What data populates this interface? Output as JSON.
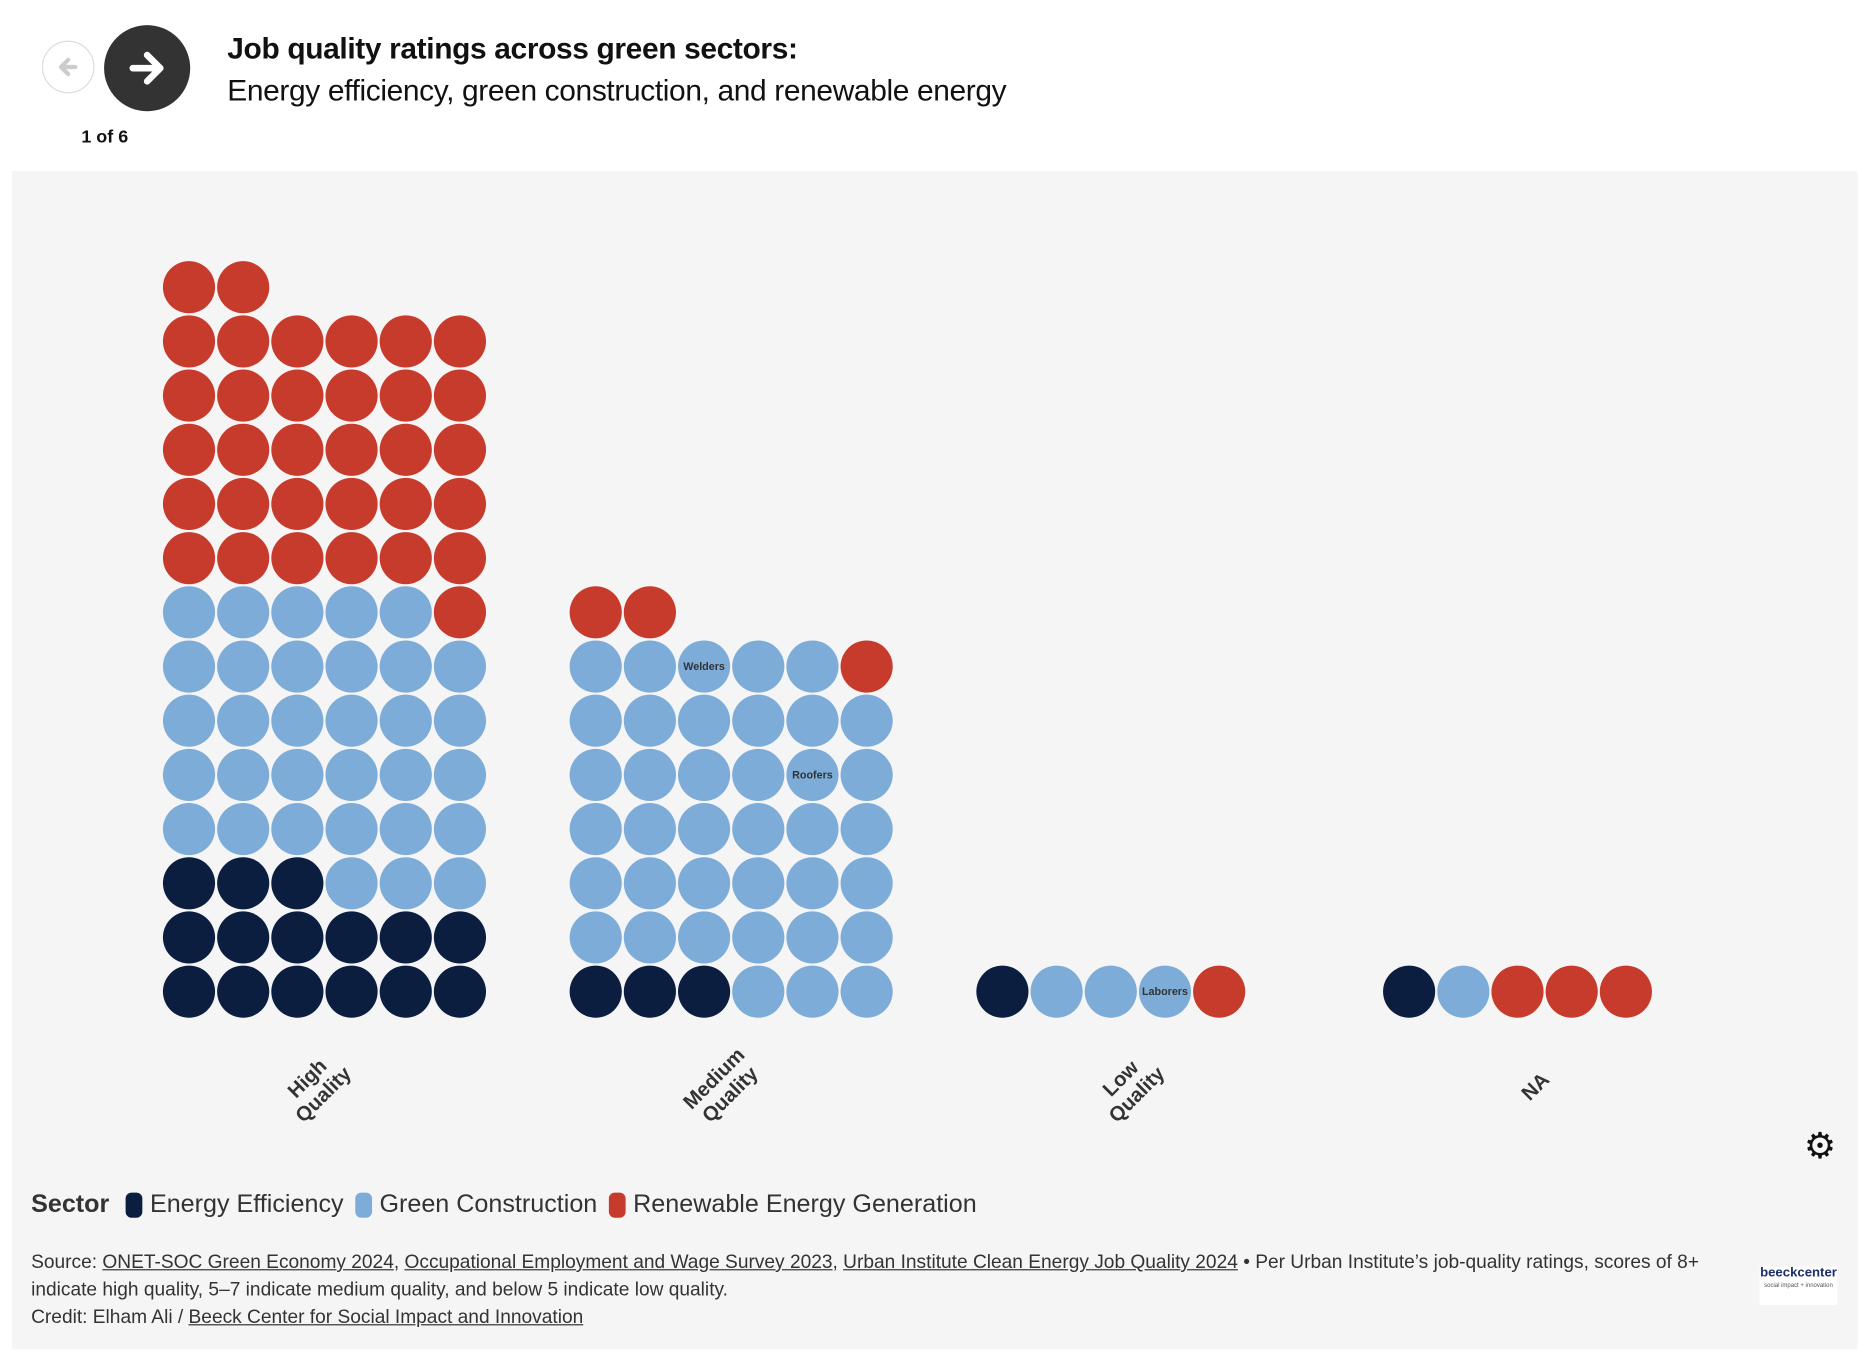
{
  "header": {
    "title": "Job quality ratings across green sectors:",
    "subtitle": "Energy efficiency, green construction, and renewable energy",
    "pager": "1 of 6",
    "prev_icon": "arrow-left-icon",
    "next_icon": "arrow-right-icon"
  },
  "chart_data": {
    "type": "unit-dot-plot",
    "categories": [
      "High Quality",
      "Medium Quality",
      "Low Quality",
      "NA"
    ],
    "category_label_lines": [
      [
        "High",
        "Quality"
      ],
      [
        "Medium",
        "Quality"
      ],
      [
        "Low",
        "Quality"
      ],
      [
        "NA"
      ]
    ],
    "series": [
      {
        "name": "Energy Efficiency",
        "color": "#0c1e40",
        "values": [
          15,
          3,
          1,
          1
        ]
      },
      {
        "name": "Green Construction",
        "color": "#7eacd8",
        "values": [
          32,
          38,
          3,
          1
        ]
      },
      {
        "name": "Renewable Energy Generation",
        "color": "#c63b2c",
        "values": [
          33,
          3,
          1,
          3
        ]
      }
    ],
    "columns_per_group": 6,
    "annotations": [
      {
        "category": "Medium Quality",
        "unit_index": 38,
        "text": "Welders"
      },
      {
        "category": "Medium Quality",
        "unit_index": 28,
        "text": "Roofers"
      },
      {
        "category": "Low Quality",
        "unit_index": 3,
        "text": "Laborers"
      }
    ]
  },
  "legend": {
    "title": "Sector",
    "items": [
      "Energy Efficiency",
      "Green Construction",
      "Renewable Energy Generation"
    ]
  },
  "footer": {
    "source_label": "Source:",
    "links": [
      "ONET-SOC Green Economy 2024",
      "Occupational Employment and Wage Survey 2023",
      "Urban Institute Clean Energy Job Quality 2024"
    ],
    "note": "• Per Urban Institute’s job-quality ratings, scores of 8+ indicate high quality, 5–7 indicate medium quality, and below 5 indicate low quality.",
    "credit_label": "Credit: Elham Ali /",
    "credit_link": "Beeck Center for Social Impact and Innovation",
    "logo_text": "beeckcenter",
    "logo_sub": "social impact + innovation"
  },
  "settings_icon": "gear-icon"
}
